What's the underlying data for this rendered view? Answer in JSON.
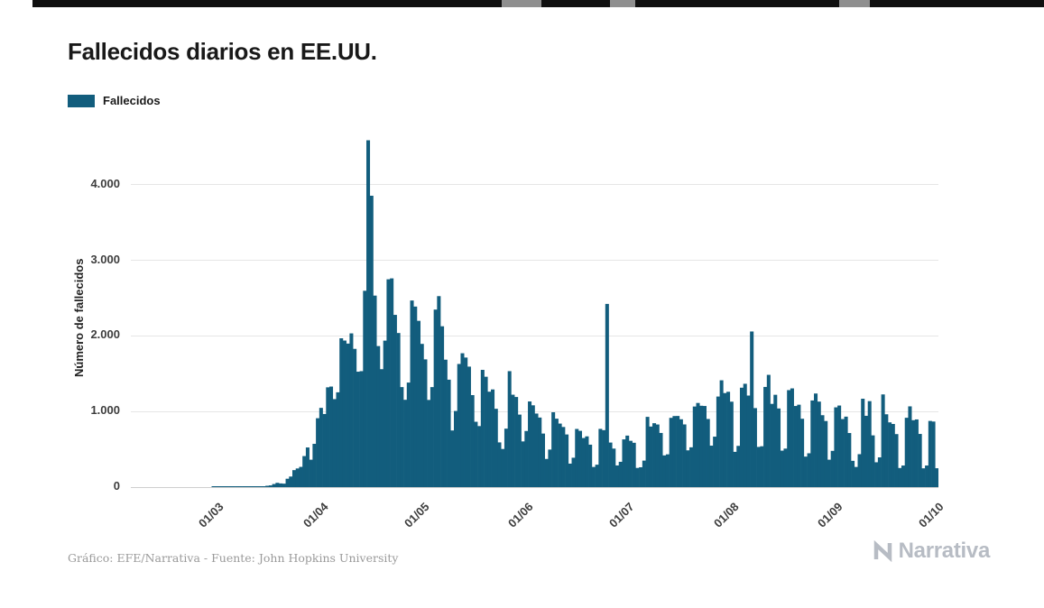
{
  "page": {
    "title": "Fallecidos diarios en EE.UU."
  },
  "legend": {
    "label": "Fallecidos",
    "color": "#125d7d"
  },
  "footer": {
    "credit": "Gráfico: EFE/Narrativa - Fuente: John Hopkins University",
    "logo_text": "Narrativa"
  },
  "chart_data": {
    "type": "bar",
    "title": "Fallecidos diarios en EE.UU.",
    "series_name": "Fallecidos",
    "xlabel": "",
    "ylabel": "Número de fallecidos",
    "color": "#125d7d",
    "grid": "horizontal",
    "legend_position": "top-left",
    "start_date": "05/02/2020",
    "frequency": "daily",
    "ylim": [
      0,
      4776
    ],
    "y_ticks": [
      {
        "value": 0,
        "label": "0"
      },
      {
        "value": 1000,
        "label": "1.000"
      },
      {
        "value": 2000,
        "label": "2.000"
      },
      {
        "value": 3000,
        "label": "3.000"
      },
      {
        "value": 4000,
        "label": "4.000"
      }
    ],
    "x_ticks": [
      {
        "i": 25,
        "label": "01/03"
      },
      {
        "i": 56,
        "label": "01/04"
      },
      {
        "i": 86,
        "label": "01/05"
      },
      {
        "i": 117,
        "label": "01/06"
      },
      {
        "i": 147,
        "label": "01/07"
      },
      {
        "i": 178,
        "label": "01/08"
      },
      {
        "i": 209,
        "label": "01/09"
      },
      {
        "i": 239,
        "label": "01/10"
      }
    ],
    "values": [
      0,
      0,
      0,
      0,
      0,
      0,
      0,
      0,
      0,
      0,
      0,
      0,
      0,
      0,
      0,
      0,
      0,
      0,
      0,
      0,
      0,
      0,
      0,
      0,
      1,
      1,
      5,
      2,
      4,
      2,
      3,
      4,
      3,
      4,
      4,
      8,
      3,
      8,
      11,
      11,
      18,
      23,
      41,
      57,
      49,
      46,
      111,
      140,
      225,
      247,
      268,
      411,
      525,
      363,
      573,
      912,
      1049,
      968,
      1321,
      1331,
      1165,
      1255,
      1970,
      1940,
      1900,
      2035,
      1830,
      1528,
      1535,
      2599,
      4591,
      3857,
      2535,
      1867,
      1561,
      1939,
      2751,
      2763,
      2280,
      2040,
      1324,
      1156,
      1384,
      2470,
      2390,
      2201,
      1896,
      1691,
      1154,
      1324,
      2350,
      2528,
      2129,
      1687,
      1422,
      750,
      1008,
      1630,
      1772,
      1715,
      1595,
      1218,
      865,
      808,
      1552,
      1461,
      1263,
      1293,
      1037,
      592,
      505,
      774,
      1535,
      1223,
      1193,
      960,
      605,
      743,
      1134,
      1083,
      974,
      921,
      709,
      373,
      497,
      991,
      906,
      841,
      796,
      697,
      311,
      389,
      770,
      745,
      650,
      672,
      562,
      267,
      297,
      771,
      754,
      2425,
      590,
      510,
      287,
      335,
      632,
      682,
      613,
      587,
      254,
      263,
      351,
      930,
      802,
      846,
      829,
      717,
      420,
      434,
      917,
      941,
      942,
      898,
      830,
      487,
      527,
      1067,
      1114,
      1077,
      1074,
      902,
      549,
      668,
      1199,
      1414,
      1245,
      1262,
      1131,
      467,
      546,
      1316,
      1368,
      1212,
      2060,
      1046,
      532,
      541,
      1326,
      1486,
      1102,
      1222,
      1041,
      483,
      510,
      1284,
      1307,
      1074,
      1091,
      905,
      404,
      448,
      1147,
      1239,
      1132,
      952,
      875,
      363,
      480,
      1056,
      1080,
      901,
      933,
      716,
      348,
      267,
      436,
      1170,
      944,
      1138,
      685,
      329,
      394,
      1227,
      964,
      857,
      836,
      702,
      253,
      286,
      918,
      1069,
      886,
      896,
      704,
      249,
      286,
      876,
      868,
      250
    ]
  }
}
